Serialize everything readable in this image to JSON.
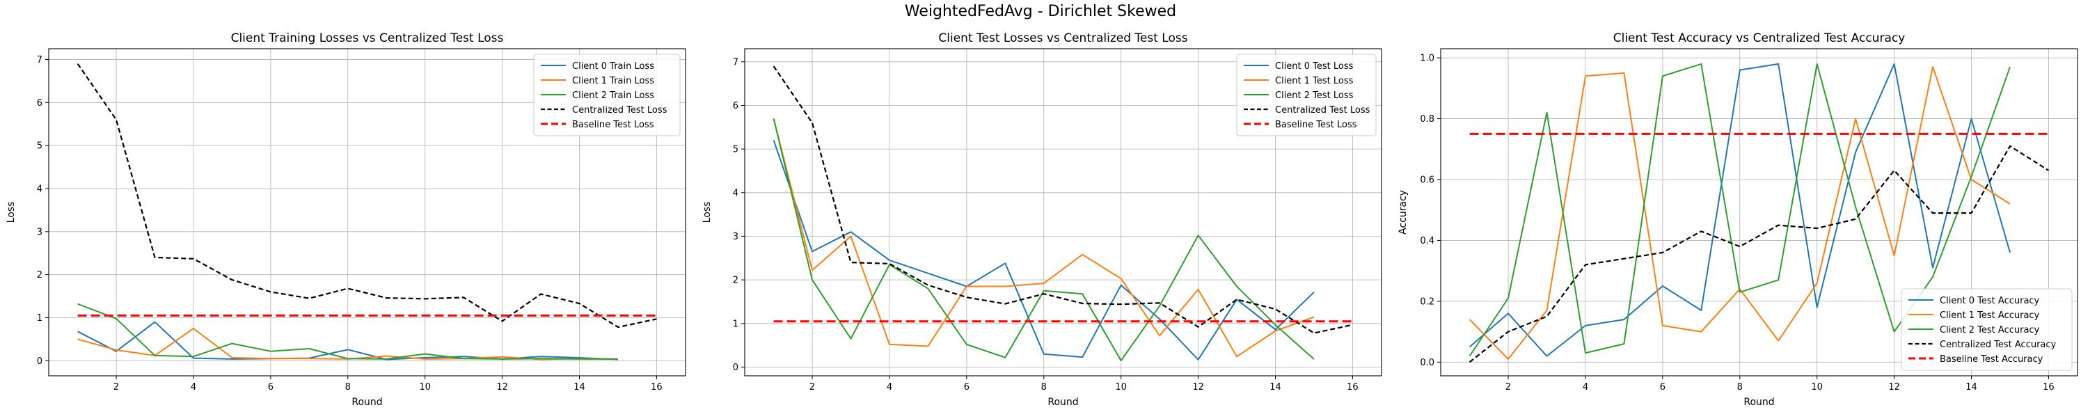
{
  "figure": {
    "title": "WeightedFedAvg - Dirichlet Skewed"
  },
  "colors": {
    "client0": "#1f77b4",
    "client1": "#ff7f0e",
    "client2": "#2ca02c",
    "centralized": "#000000",
    "baseline": "#ff0000",
    "grid": "#b0b0b0"
  },
  "chart_data": [
    {
      "type": "line",
      "title": "Client Training Losses vs Centralized Test Loss",
      "xlabel": "Round",
      "ylabel": "Loss",
      "xlim": [
        0.25,
        16.75
      ],
      "ylim": [
        -0.35,
        7.25
      ],
      "xticks": [
        2,
        4,
        6,
        8,
        10,
        12,
        14,
        16
      ],
      "yticks": [
        0,
        1,
        2,
        3,
        4,
        5,
        6,
        7
      ],
      "grid": true,
      "legend_position": "upper-right",
      "series": [
        {
          "name": "Client 0 Train Loss",
          "color": "#1f77b4",
          "style": "solid",
          "x": [
            1,
            2,
            3,
            4,
            5,
            6,
            7,
            8,
            9,
            10,
            11,
            12,
            13,
            14,
            15
          ],
          "y": [
            0.68,
            0.22,
            0.9,
            0.06,
            0.04,
            0.05,
            0.06,
            0.26,
            0.03,
            0.07,
            0.1,
            0.04,
            0.1,
            0.07,
            0.03
          ]
        },
        {
          "name": "Client 1 Train Loss",
          "color": "#ff7f0e",
          "style": "solid",
          "x": [
            1,
            2,
            3,
            4,
            5,
            6,
            7,
            8,
            9,
            10,
            11,
            12,
            13,
            14,
            15
          ],
          "y": [
            0.5,
            0.25,
            0.12,
            0.75,
            0.07,
            0.05,
            0.05,
            0.04,
            0.11,
            0.04,
            0.05,
            0.09,
            0.03,
            0.05,
            0.04
          ]
        },
        {
          "name": "Client 2 Train Loss",
          "color": "#2ca02c",
          "style": "solid",
          "x": [
            1,
            2,
            3,
            4,
            5,
            6,
            7,
            8,
            9,
            10,
            11,
            12,
            13,
            14,
            15
          ],
          "y": [
            1.32,
            0.98,
            0.12,
            0.1,
            0.4,
            0.22,
            0.28,
            0.05,
            0.04,
            0.16,
            0.05,
            0.04,
            0.05,
            0.04,
            0.04
          ]
        },
        {
          "name": "Centralized Test Loss",
          "color": "#000000",
          "style": "dashed",
          "x": [
            1,
            2,
            3,
            4,
            5,
            6,
            7,
            8,
            9,
            10,
            11,
            12,
            13,
            14,
            15,
            16
          ],
          "y": [
            6.9,
            5.6,
            2.4,
            2.37,
            1.88,
            1.6,
            1.45,
            1.68,
            1.46,
            1.44,
            1.47,
            0.92,
            1.55,
            1.33,
            0.78,
            0.97
          ]
        },
        {
          "name": "Baseline Test Loss",
          "color": "#ff0000",
          "style": "baseline",
          "x": [
            1,
            16
          ],
          "y": [
            1.05,
            1.05
          ]
        }
      ]
    },
    {
      "type": "line",
      "title": "Client Test Losses vs Centralized Test Loss",
      "xlabel": "Round",
      "ylabel": "Loss",
      "xlim": [
        0.25,
        16.75
      ],
      "ylim": [
        -0.2,
        7.3
      ],
      "xticks": [
        2,
        4,
        6,
        8,
        10,
        12,
        14,
        16
      ],
      "yticks": [
        0,
        1,
        2,
        3,
        4,
        5,
        6,
        7
      ],
      "grid": true,
      "legend_position": "upper-right",
      "series": [
        {
          "name": "Client 0 Test Loss",
          "color": "#1f77b4",
          "style": "solid",
          "x": [
            1,
            2,
            3,
            4,
            5,
            6,
            7,
            8,
            9,
            10,
            11,
            12,
            13,
            14,
            15
          ],
          "y": [
            5.2,
            2.65,
            3.1,
            2.45,
            2.15,
            1.85,
            2.38,
            0.3,
            0.23,
            1.88,
            1.1,
            0.17,
            1.55,
            0.86,
            1.72
          ]
        },
        {
          "name": "Client 1 Test Loss",
          "color": "#ff7f0e",
          "style": "solid",
          "x": [
            1,
            2,
            3,
            4,
            5,
            6,
            7,
            8,
            9,
            10,
            11,
            12,
            13,
            14,
            15
          ],
          "y": [
            5.7,
            2.22,
            3.0,
            0.52,
            0.48,
            1.85,
            1.85,
            1.92,
            2.58,
            2.03,
            0.72,
            1.78,
            0.24,
            0.83,
            1.15
          ]
        },
        {
          "name": "Client 2 Test Loss",
          "color": "#2ca02c",
          "style": "solid",
          "x": [
            1,
            2,
            3,
            4,
            5,
            6,
            7,
            8,
            9,
            10,
            11,
            12,
            13,
            14,
            15
          ],
          "y": [
            5.7,
            2.0,
            0.65,
            2.35,
            1.8,
            0.52,
            0.22,
            1.75,
            1.68,
            0.15,
            1.4,
            3.02,
            1.85,
            0.97,
            0.18
          ]
        },
        {
          "name": "Centralized Test Loss",
          "color": "#000000",
          "style": "dashed",
          "x": [
            1,
            2,
            3,
            4,
            5,
            6,
            7,
            8,
            9,
            10,
            11,
            12,
            13,
            14,
            15,
            16
          ],
          "y": [
            6.9,
            5.6,
            2.4,
            2.37,
            1.88,
            1.6,
            1.45,
            1.68,
            1.46,
            1.44,
            1.47,
            0.92,
            1.55,
            1.33,
            0.78,
            0.97
          ]
        },
        {
          "name": "Baseline Test Loss",
          "color": "#ff0000",
          "style": "baseline",
          "x": [
            1,
            16
          ],
          "y": [
            1.05,
            1.05
          ]
        }
      ]
    },
    {
      "type": "line",
      "title": "Client Test Accuracy vs Centralized Test Accuracy",
      "xlabel": "Round",
      "ylabel": "Accuracy",
      "xlim": [
        0.25,
        16.75
      ],
      "ylim": [
        -0.045,
        1.03
      ],
      "xticks": [
        2,
        4,
        6,
        8,
        10,
        12,
        14,
        16
      ],
      "yticks": [
        0.0,
        0.2,
        0.4,
        0.6,
        0.8,
        1.0
      ],
      "ytick_labels": [
        "0.0",
        "0.2",
        "0.4",
        "0.6",
        "0.8",
        "1.0"
      ],
      "grid": true,
      "legend_position": "lower-right",
      "series": [
        {
          "name": "Client 0 Test Accuracy",
          "color": "#1f77b4",
          "style": "solid",
          "x": [
            1,
            2,
            3,
            4,
            5,
            6,
            7,
            8,
            9,
            10,
            11,
            12,
            13,
            14,
            15
          ],
          "y": [
            0.05,
            0.16,
            0.02,
            0.12,
            0.14,
            0.25,
            0.17,
            0.96,
            0.98,
            0.18,
            0.69,
            0.98,
            0.31,
            0.8,
            0.36
          ]
        },
        {
          "name": "Client 1 Test Accuracy",
          "color": "#ff7f0e",
          "style": "solid",
          "x": [
            1,
            2,
            3,
            4,
            5,
            6,
            7,
            8,
            9,
            10,
            11,
            12,
            13,
            14,
            15
          ],
          "y": [
            0.14,
            0.01,
            0.17,
            0.94,
            0.95,
            0.12,
            0.1,
            0.24,
            0.07,
            0.26,
            0.8,
            0.35,
            0.97,
            0.6,
            0.52
          ]
        },
        {
          "name": "Client 2 Test Accuracy",
          "color": "#2ca02c",
          "style": "solid",
          "x": [
            1,
            2,
            3,
            4,
            5,
            6,
            7,
            8,
            9,
            10,
            11,
            12,
            13,
            14,
            15
          ],
          "y": [
            0.02,
            0.21,
            0.82,
            0.03,
            0.06,
            0.94,
            0.98,
            0.23,
            0.27,
            0.98,
            0.51,
            0.1,
            0.28,
            0.61,
            0.97
          ]
        },
        {
          "name": "Centralized Test Accuracy",
          "color": "#000000",
          "style": "dashed",
          "x": [
            1,
            2,
            3,
            4,
            5,
            6,
            7,
            8,
            9,
            10,
            11,
            12,
            13,
            14,
            15,
            16
          ],
          "y": [
            0.0,
            0.1,
            0.15,
            0.32,
            0.34,
            0.36,
            0.43,
            0.38,
            0.45,
            0.44,
            0.47,
            0.63,
            0.49,
            0.49,
            0.71,
            0.63
          ]
        },
        {
          "name": "Baseline Test Accuracy",
          "color": "#ff0000",
          "style": "baseline",
          "x": [
            1,
            16
          ],
          "y": [
            0.75,
            0.75
          ]
        }
      ]
    }
  ]
}
